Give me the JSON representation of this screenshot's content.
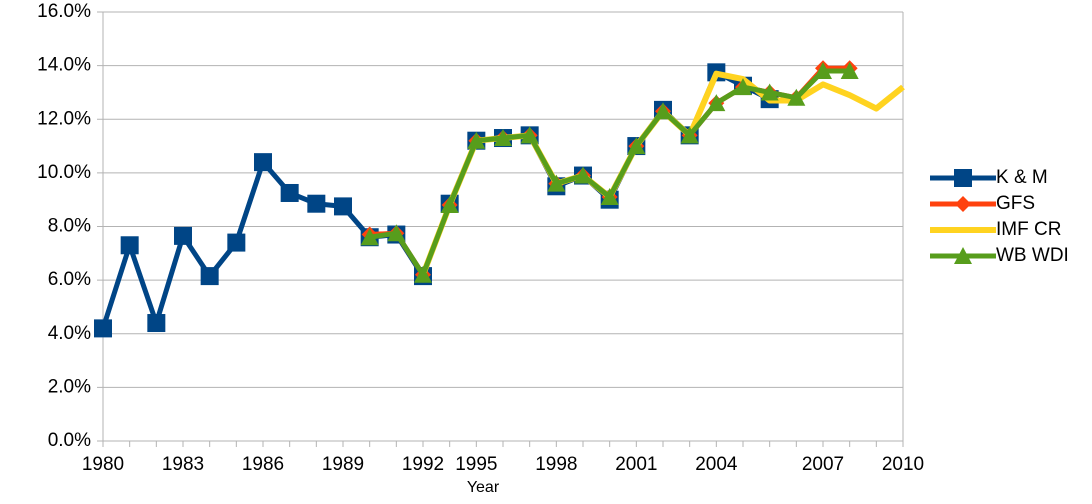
{
  "chart_data": {
    "type": "line",
    "x_label": "Year",
    "categories": [
      "1980",
      null,
      null,
      "1983",
      null,
      null,
      "1986",
      null,
      null,
      "1989",
      null,
      null,
      "1992",
      null,
      "1995",
      null,
      null,
      "1998",
      null,
      null,
      "2001",
      null,
      null,
      "2004",
      null,
      null,
      null,
      "2007",
      null,
      null,
      "2010"
    ],
    "ylim": [
      0,
      16
    ],
    "yticks": [
      {
        "value": 0,
        "label": "0.0%"
      },
      {
        "value": 2,
        "label": "2.0%"
      },
      {
        "value": 4,
        "label": "4.0%"
      },
      {
        "value": 6,
        "label": "6.0%"
      },
      {
        "value": 8,
        "label": "8.0%"
      },
      {
        "value": 10,
        "label": "10.0%"
      },
      {
        "value": 12,
        "label": "12.0%"
      },
      {
        "value": 14,
        "label": "14.0%"
      },
      {
        "value": 16,
        "label": "16.0%"
      }
    ],
    "grid": true,
    "legend": "right",
    "series": [
      {
        "name": "K & M",
        "color": "#004586",
        "marker": "square",
        "values": [
          4.2,
          7.3,
          4.4,
          7.65,
          6.15,
          7.4,
          10.4,
          9.25,
          8.85,
          8.75,
          7.6,
          7.7,
          6.15,
          8.85,
          11.2,
          11.3,
          11.4,
          9.5,
          9.9,
          9.0,
          11.0,
          12.35,
          11.4,
          13.75,
          13.25,
          12.75,
          null,
          null,
          null,
          null,
          null
        ]
      },
      {
        "name": "GFS",
        "color": "#ff420e",
        "marker": "diamond",
        "values": [
          null,
          null,
          null,
          null,
          null,
          null,
          null,
          null,
          null,
          null,
          7.7,
          7.75,
          6.2,
          8.8,
          11.2,
          11.3,
          11.4,
          9.6,
          9.9,
          9.1,
          11.0,
          12.3,
          11.4,
          12.6,
          13.2,
          13.0,
          12.8,
          13.9,
          13.9,
          null,
          null
        ]
      },
      {
        "name": "IMF CR",
        "color": "#ffd320",
        "marker": "none",
        "values": [
          null,
          null,
          null,
          null,
          null,
          null,
          null,
          null,
          null,
          null,
          null,
          null,
          6.2,
          8.8,
          11.2,
          11.3,
          11.4,
          9.6,
          9.9,
          9.1,
          11.0,
          12.3,
          11.4,
          13.7,
          13.5,
          12.7,
          12.7,
          13.3,
          12.9,
          12.4,
          13.2
        ]
      },
      {
        "name": "WB WDI",
        "color": "#579d1c",
        "marker": "triangle",
        "values": [
          null,
          null,
          null,
          null,
          null,
          null,
          null,
          null,
          null,
          null,
          7.6,
          7.75,
          6.2,
          8.8,
          11.2,
          11.3,
          11.4,
          9.6,
          9.9,
          9.1,
          11.0,
          12.3,
          11.4,
          12.6,
          13.2,
          13.0,
          12.8,
          13.8,
          13.8,
          null,
          null
        ]
      }
    ]
  }
}
